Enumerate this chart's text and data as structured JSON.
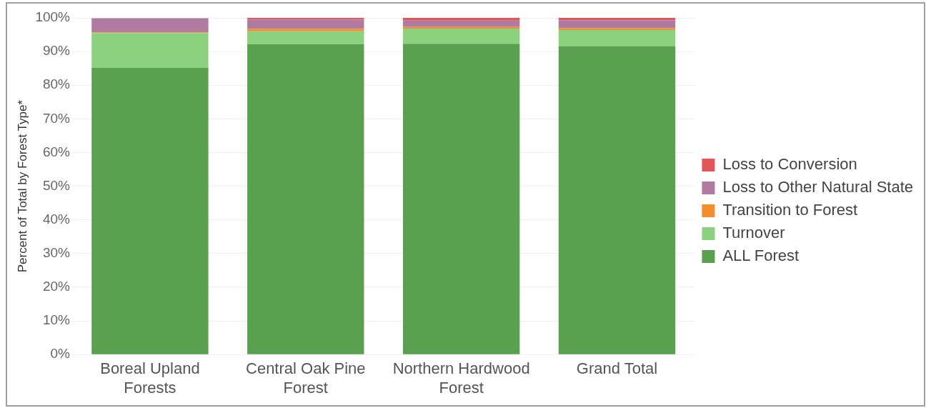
{
  "chart_data": {
    "type": "bar",
    "stacked": true,
    "ylabel": "Percent of Total by Forest Type*",
    "categories": [
      "Boreal Upland Forests",
      "Central Oak Pine Forest",
      "Northern Hardwood Forest",
      "Grand Total"
    ],
    "series": [
      {
        "name": "ALL Forest",
        "color": "#59a14f",
        "values": [
          85.2,
          92.2,
          92.3,
          91.6
        ]
      },
      {
        "name": "Turnover",
        "color": "#8cd17d",
        "values": [
          10.3,
          3.8,
          4.5,
          4.8
        ]
      },
      {
        "name": "Transition to Forest",
        "color": "#f28e2b",
        "values": [
          0.2,
          0.7,
          0.5,
          0.5
        ]
      },
      {
        "name": "Loss to Other Natural State",
        "color": "#b07aa1",
        "values": [
          4.2,
          2.8,
          1.9,
          2.4
        ]
      },
      {
        "name": "Loss to Conversion",
        "color": "#e15759",
        "values": [
          null,
          0.5,
          0.8,
          0.7
        ]
      }
    ],
    "ylim": [
      0,
      100
    ],
    "yticks": [
      {
        "value": 0,
        "label": "0%"
      },
      {
        "value": 10,
        "label": "10%"
      },
      {
        "value": 20,
        "label": "20%"
      },
      {
        "value": 30,
        "label": "30%"
      },
      {
        "value": 40,
        "label": "40%"
      },
      {
        "value": 50,
        "label": "50%"
      },
      {
        "value": 60,
        "label": "60%"
      },
      {
        "value": 70,
        "label": "70%"
      },
      {
        "value": 80,
        "label": "80%"
      },
      {
        "value": 90,
        "label": "90%"
      },
      {
        "value": 100,
        "label": "100%"
      }
    ],
    "grid": "y",
    "legend": "right"
  }
}
